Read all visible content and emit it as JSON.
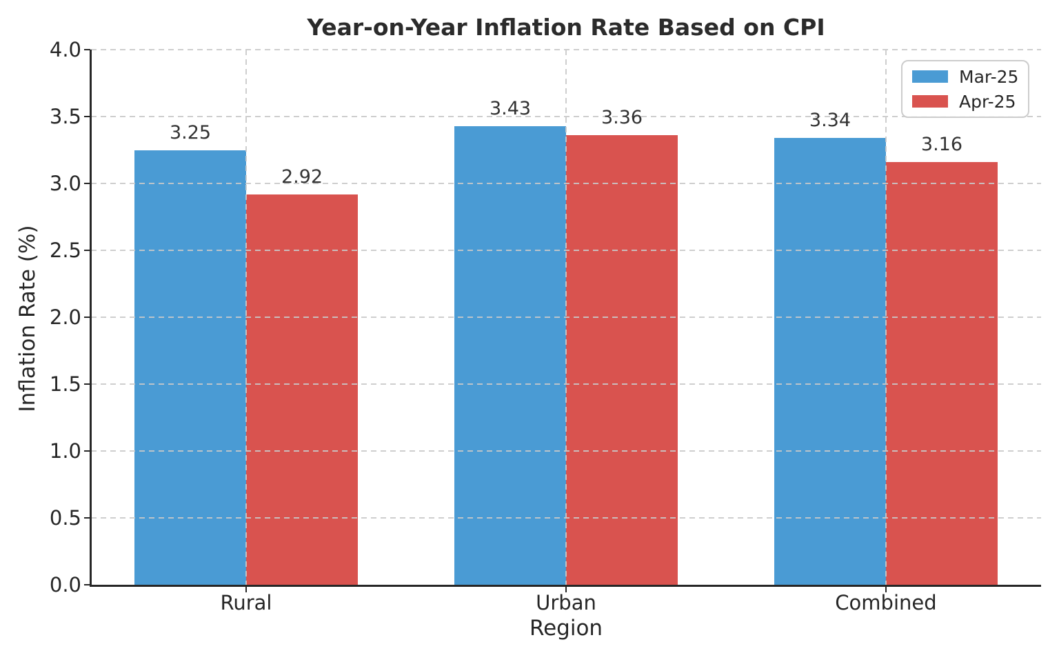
{
  "chart_data": {
    "type": "bar",
    "title": "Year-on-Year Inflation Rate Based on CPI",
    "xlabel": "Region",
    "ylabel": "Inflation Rate (%)",
    "categories": [
      "Rural",
      "Urban",
      "Combined"
    ],
    "series": [
      {
        "name": "Mar-25",
        "color": "#4a9bd4",
        "values": [
          3.25,
          3.43,
          3.34
        ],
        "labels": [
          "3.25",
          "3.43",
          "3.34"
        ]
      },
      {
        "name": "Apr-25",
        "color": "#d9534f",
        "values": [
          2.92,
          3.36,
          3.16
        ],
        "labels": [
          "2.92",
          "3.36",
          "3.16"
        ]
      }
    ],
    "ylim": [
      0,
      4.0
    ],
    "ytick_labels": [
      "0.0",
      "0.5",
      "1.0",
      "1.5",
      "2.0",
      "2.5",
      "3.0",
      "3.5",
      "4.0"
    ],
    "grid": "dashed horizontal and vertical gridlines, drawn above bars",
    "legend_position": "upper right"
  }
}
